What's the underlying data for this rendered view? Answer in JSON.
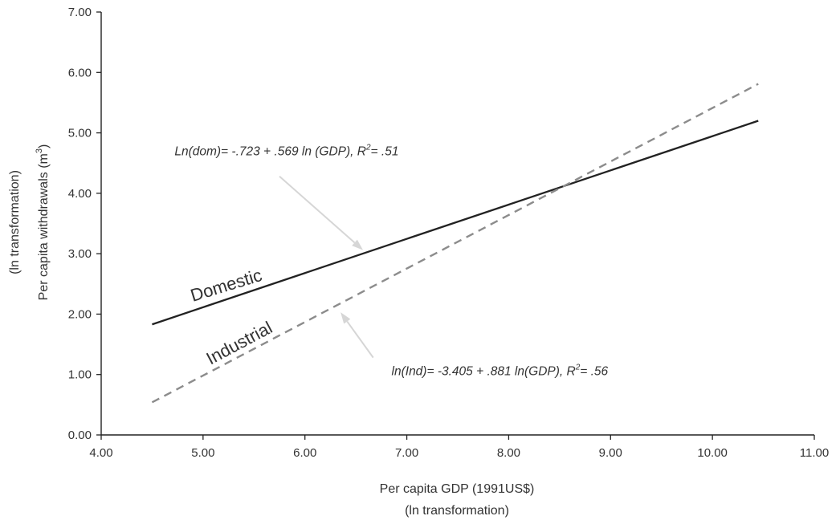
{
  "chart_data": {
    "type": "line",
    "xlabel": "Per capita GDP (1991US$)",
    "xlabel_sub": "(ln transformation)",
    "ylabel": "Per capita withdrawals (m",
    "ylabel_sup": "3",
    "ylabel_close": ")",
    "ylabel_sub": "(ln transformation)",
    "xlim": [
      4.0,
      11.0
    ],
    "ylim": [
      0.0,
      7.0
    ],
    "x_ticks": [
      "4.00",
      "5.00",
      "6.00",
      "7.00",
      "8.00",
      "9.00",
      "10.00",
      "11.00"
    ],
    "y_ticks": [
      "0.00",
      "1.00",
      "2.00",
      "3.00",
      "4.00",
      "5.00",
      "6.00",
      "7.00"
    ],
    "grid": false,
    "legend": "none",
    "series": [
      {
        "name": "Domestic",
        "style": "solid",
        "color": "#222222",
        "x": [
          4.5,
          10.45
        ],
        "y": [
          1.83,
          5.2
        ]
      },
      {
        "name": "Industrial",
        "style": "dashed",
        "color": "#8c8c8c",
        "x": [
          4.5,
          10.45
        ],
        "y": [
          0.54,
          5.81
        ]
      }
    ],
    "annotations": [
      {
        "id": "dom",
        "before": "Ln(dom)= -.723 + .569 ln (GDP), R",
        "sup": "2",
        "after": "= .51",
        "text_x": 4.72,
        "text_y": 4.63,
        "arrow_from": [
          5.75,
          4.28
        ],
        "arrow_to": [
          6.57,
          3.06
        ]
      },
      {
        "id": "ind",
        "before": "ln(Ind)= -3.405 + .881 ln(GDP), R",
        "sup": "2",
        "after": "= .56",
        "text_x": 6.85,
        "text_y": 0.99,
        "arrow_from": [
          6.67,
          1.28
        ],
        "arrow_to": [
          6.35,
          2.03
        ]
      }
    ]
  }
}
